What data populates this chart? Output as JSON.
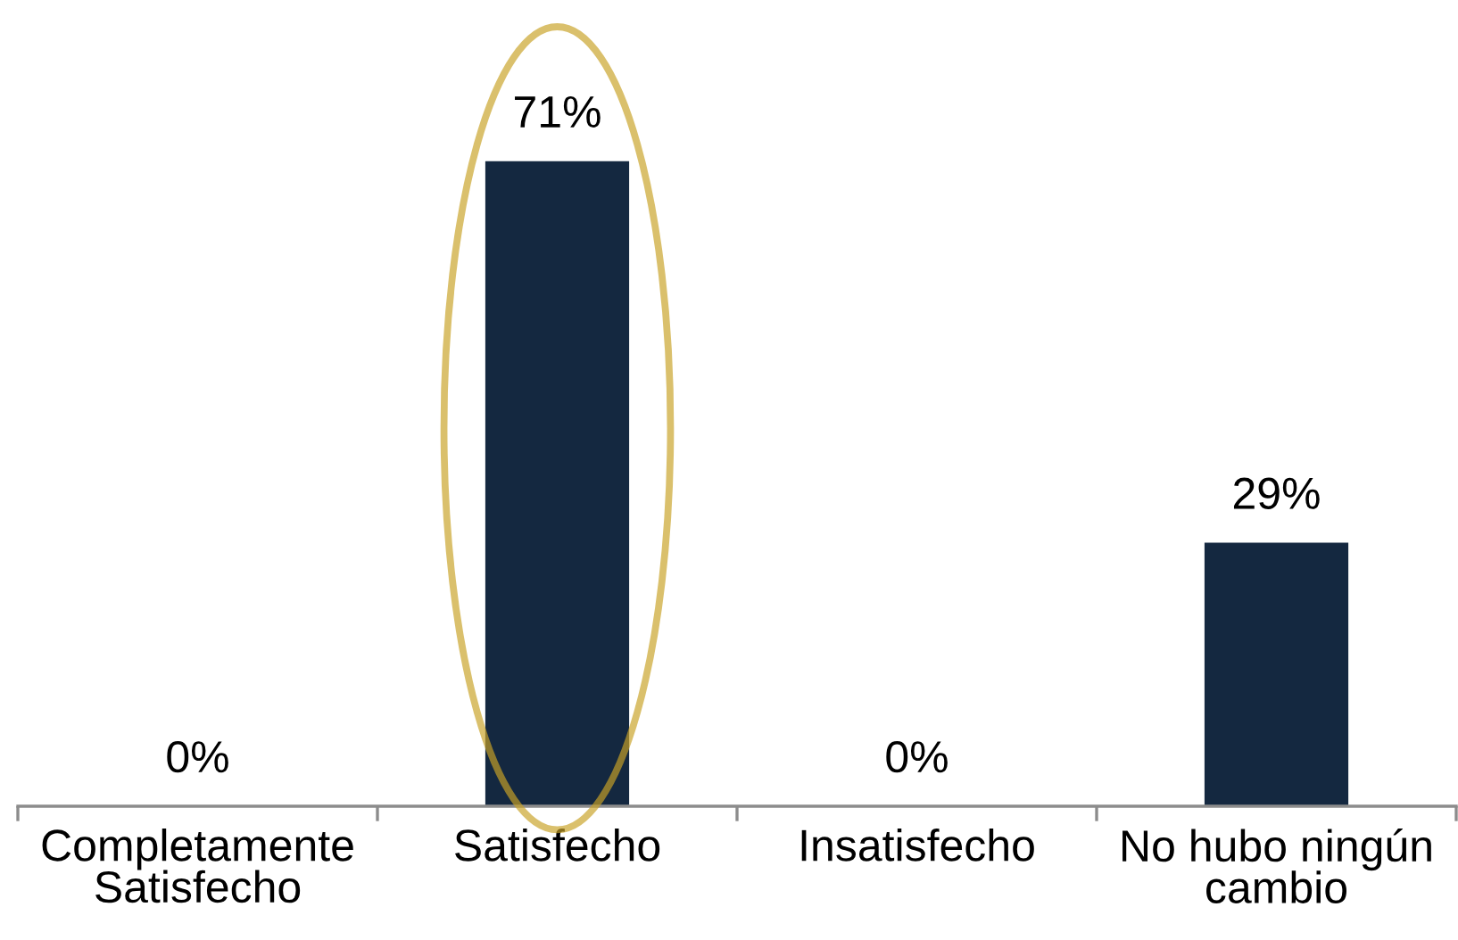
{
  "chart_data": {
    "type": "bar",
    "categories": [
      "Completamente Satisfecho",
      "Satisfecho",
      "Insatisfecho",
      "No hubo ningún cambio"
    ],
    "values": [
      0,
      71,
      0,
      29
    ],
    "color": "#142840",
    "value_labels": [
      "0%",
      "71%",
      "0%",
      "29%"
    ]
  }
}
